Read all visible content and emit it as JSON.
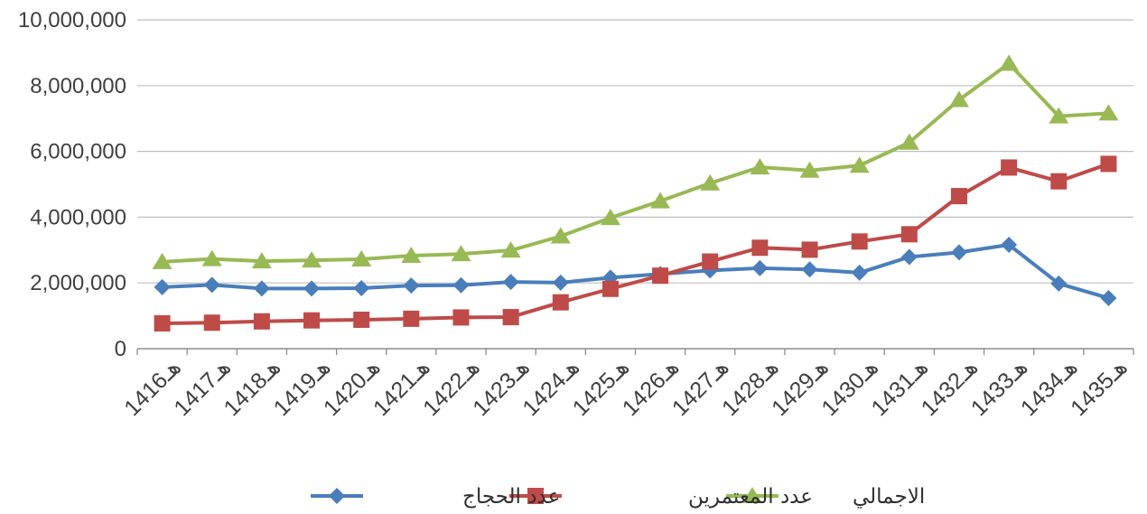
{
  "chart_data": {
    "type": "line",
    "title": "",
    "xlabel": "",
    "ylabel": "",
    "ylim": [
      0,
      10000000
    ],
    "y_ticks": [
      "0",
      "2,000,000",
      "4,000,000",
      "6,000,000",
      "8,000,000",
      "10,000,000"
    ],
    "y_tick_values": [
      0,
      2000000,
      4000000,
      6000000,
      8000000,
      10000000
    ],
    "grid": true,
    "legend_position": "bottom",
    "categories": [
      "1416هـ",
      "1417هـ",
      "1418هـ",
      "1419هـ",
      "1420هـ",
      "1421هـ",
      "1422هـ",
      "1423هـ",
      "1424هـ",
      "1425هـ",
      "1426هـ",
      "1427هـ",
      "1428هـ",
      "1429هـ",
      "1430هـ",
      "1431هـ",
      "1432هـ",
      "1433هـ",
      "1434هـ",
      "1435هـ"
    ],
    "series": [
      {
        "name": "عدد الحجاج",
        "color": "#4a7ebb",
        "marker": "diamond",
        "values": [
          1870000,
          1940000,
          1830000,
          1830000,
          1840000,
          1920000,
          1930000,
          2030000,
          2010000,
          2160000,
          2270000,
          2380000,
          2450000,
          2410000,
          2310000,
          2790000,
          2930000,
          3160000,
          1980000,
          1540000
        ]
      },
      {
        "name": "عدد المعتمرين",
        "color": "#be4b48",
        "marker": "square",
        "values": [
          770000,
          790000,
          830000,
          860000,
          880000,
          910000,
          950000,
          960000,
          1410000,
          1820000,
          2220000,
          2650000,
          3070000,
          3010000,
          3260000,
          3480000,
          4640000,
          5510000,
          5090000,
          5620000
        ]
      },
      {
        "name": "الاجمالي",
        "color": "#98b954",
        "marker": "triangle",
        "values": [
          2640000,
          2730000,
          2660000,
          2690000,
          2720000,
          2830000,
          2880000,
          2990000,
          3420000,
          3980000,
          4490000,
          5030000,
          5520000,
          5420000,
          5570000,
          6270000,
          7570000,
          8670000,
          7070000,
          7160000
        ]
      }
    ]
  }
}
